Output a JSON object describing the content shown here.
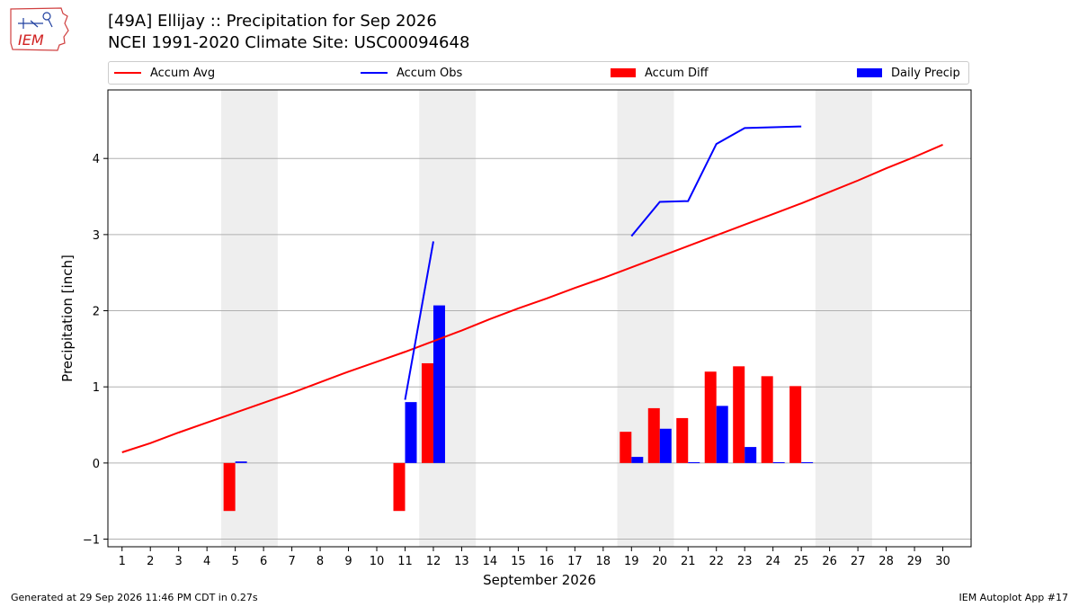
{
  "header": {
    "title_line1": "[49A] Ellijay :: Precipitation for Sep 2026",
    "title_line2": "NCEI 1991-2020 Climate Site: USC00094648",
    "logo_text": "IEM"
  },
  "footer": {
    "generated": "Generated at 29 Sep 2026 11:46 PM CDT in 0.27s",
    "app": "IEM Autoplot App #17"
  },
  "colors": {
    "accum_avg": "#ff0000",
    "accum_obs": "#0000ff",
    "accum_diff": "#ff0000",
    "daily_precip": "#0000ff",
    "weekend_shade": "#eeeeee",
    "grid": "#b0b0b0"
  },
  "chart_data": {
    "type": "bar",
    "xlabel": "September 2026",
    "ylabel": "Precipitation [inch]",
    "xlim": [
      0.5,
      31
    ],
    "ylim": [
      -1.1,
      4.9
    ],
    "yticks": [
      -1,
      0,
      1,
      2,
      3,
      4
    ],
    "ytick_labels": [
      "−1",
      "0",
      "1",
      "2",
      "3",
      "4"
    ],
    "days": [
      1,
      2,
      3,
      4,
      5,
      6,
      7,
      8,
      9,
      10,
      11,
      12,
      13,
      14,
      15,
      16,
      17,
      18,
      19,
      20,
      21,
      22,
      23,
      24,
      25,
      26,
      27,
      28,
      29,
      30
    ],
    "weekend_spans": [
      [
        4.5,
        6.5
      ],
      [
        11.5,
        13.5
      ],
      [
        18.5,
        20.5
      ],
      [
        25.5,
        27.5
      ]
    ],
    "grid": "horizontal",
    "legend_placement": "top",
    "legend": [
      {
        "key": "accum_avg",
        "label": "Accum Avg",
        "style": "line"
      },
      {
        "key": "accum_obs",
        "label": "Accum Obs",
        "style": "line"
      },
      {
        "key": "accum_diff",
        "label": "Accum Diff",
        "style": "bar"
      },
      {
        "key": "daily_precip",
        "label": "Daily Precip",
        "style": "bar"
      }
    ],
    "accum_avg": [
      0.14,
      0.26,
      0.4,
      0.53,
      0.66,
      0.79,
      0.92,
      1.06,
      1.2,
      1.33,
      1.46,
      1.6,
      1.74,
      1.89,
      2.03,
      2.16,
      2.3,
      2.43,
      2.57,
      2.71,
      2.85,
      2.99,
      3.13,
      3.27,
      3.41,
      3.56,
      3.71,
      3.87,
      4.02,
      4.18
    ],
    "accum_obs_segments": [
      {
        "x": [
          11,
          12
        ],
        "y": [
          0.83,
          2.91
        ]
      },
      {
        "x": [
          19,
          20,
          21,
          22,
          23,
          24,
          25
        ],
        "y": [
          2.98,
          3.43,
          3.44,
          4.19,
          4.4,
          4.41,
          4.42
        ]
      }
    ],
    "accum_diff": [
      {
        "day": 5,
        "value": -0.63
      },
      {
        "day": 11,
        "value": -0.63
      },
      {
        "day": 12,
        "value": 1.31
      },
      {
        "day": 19,
        "value": 0.41
      },
      {
        "day": 20,
        "value": 0.72
      },
      {
        "day": 21,
        "value": 0.59
      },
      {
        "day": 22,
        "value": 1.2
      },
      {
        "day": 23,
        "value": 1.27
      },
      {
        "day": 24,
        "value": 1.14
      },
      {
        "day": 25,
        "value": 1.01
      }
    ],
    "daily_precip": [
      {
        "day": 5,
        "value": 0.02
      },
      {
        "day": 11,
        "value": 0.8
      },
      {
        "day": 12,
        "value": 2.07
      },
      {
        "day": 19,
        "value": 0.08
      },
      {
        "day": 20,
        "value": 0.45
      },
      {
        "day": 21,
        "value": 0.01
      },
      {
        "day": 22,
        "value": 0.75
      },
      {
        "day": 23,
        "value": 0.21
      },
      {
        "day": 24,
        "value": 0.01
      },
      {
        "day": 25,
        "value": 0.01
      }
    ]
  }
}
